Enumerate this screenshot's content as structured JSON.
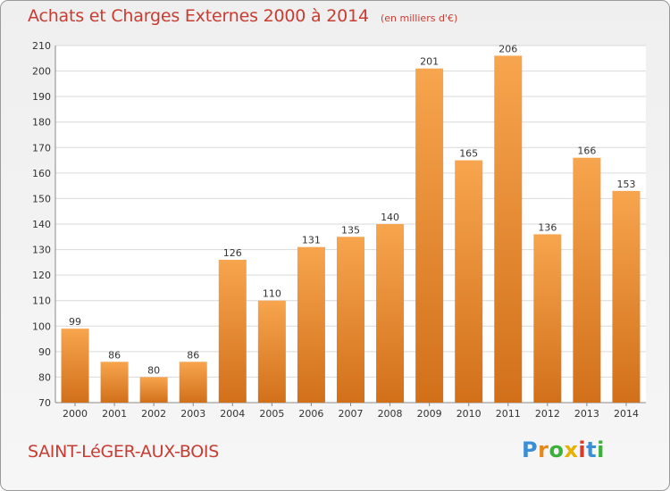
{
  "title": "Achats et Charges Externes 2000 à 2014",
  "unit_note": "(en milliers d'€)",
  "town": "SAINT-LéGER-AUX-BOIS",
  "logo": {
    "letters": [
      "P",
      "r",
      "o",
      "x",
      "i",
      "t",
      "i"
    ],
    "colors": [
      "#3a8fd6",
      "#e58a1a",
      "#3bb03b",
      "#e8b000",
      "#d93a2a",
      "#3a8fd6",
      "#3bb03b"
    ]
  },
  "colors": {
    "bar_light": "#f7a54e",
    "bar_dark": "#d2701a",
    "title": "#c83c32"
  },
  "chart_data": {
    "type": "bar",
    "categories": [
      "2000",
      "2001",
      "2002",
      "2003",
      "2004",
      "2005",
      "2006",
      "2007",
      "2008",
      "2009",
      "2010",
      "2011",
      "2012",
      "2013",
      "2014"
    ],
    "values": [
      99,
      86,
      80,
      86,
      126,
      110,
      131,
      135,
      140,
      201,
      165,
      206,
      136,
      166,
      153
    ],
    "ylim": [
      70,
      210
    ],
    "yticks": [
      70,
      80,
      90,
      100,
      110,
      120,
      130,
      140,
      150,
      160,
      170,
      180,
      190,
      200,
      210
    ],
    "grid": true
  }
}
